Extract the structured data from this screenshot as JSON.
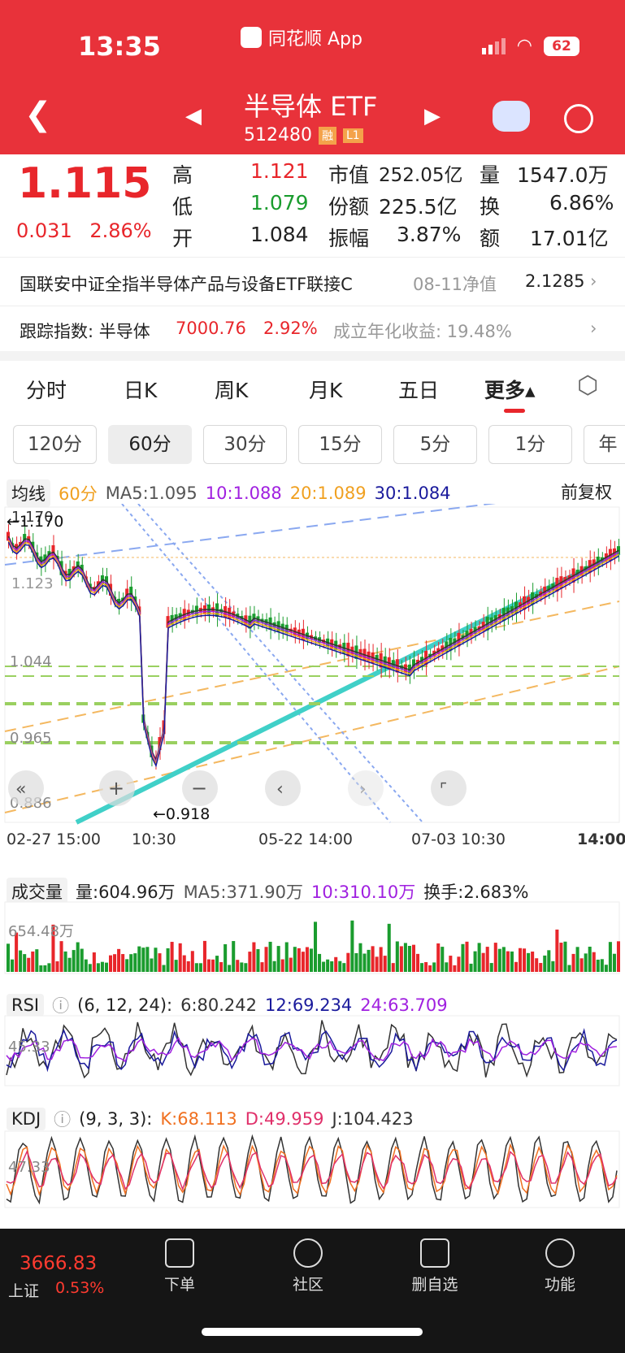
{
  "status_bar": {
    "time": "13:35",
    "app": "同花顺 App",
    "battery": "62"
  },
  "header": {
    "title": "半导体 ETF",
    "code": "512480",
    "tag_rong": "融",
    "tag_l1": "L1"
  },
  "quote": {
    "price": "1.115",
    "change": "0.031",
    "change_pct": "2.86%",
    "high_label": "高",
    "high": "1.121",
    "low_label": "低",
    "low": "1.079",
    "open_label": "开",
    "open": "1.084",
    "mktcap_label": "市值",
    "mktcap": "252.05亿",
    "shares_label": "份额",
    "shares": "225.5亿",
    "amp_label": "振幅",
    "amp": "3.87%",
    "vol_label": "量",
    "vol": "1547.0万",
    "turn_label": "换",
    "turn": "6.86%",
    "amt_label": "额",
    "amt": "17.01亿"
  },
  "fund_row": {
    "name": "国联安中证全指半导体产品与设备ETF联接C",
    "date_label": "08-11净值",
    "nav": "2.1285"
  },
  "index_row": {
    "label": "跟踪指数: 半导体",
    "value": "7000.76",
    "pct": "2.92%",
    "annual": "成立年化收益: 19.48%"
  },
  "tabs": [
    "分时",
    "日K",
    "周K",
    "月K",
    "五日",
    "更多▴"
  ],
  "subtabs": [
    "120分",
    "60分",
    "30分",
    "15分",
    "5分",
    "1分",
    "年"
  ],
  "ma_legend": {
    "dropdown": "均线",
    "period": "60分",
    "ma5": "MA5:1.095",
    "ma10": "10:1.088",
    "ma20": "20:1.089",
    "ma30": "30:1.084",
    "adjust": "前复权"
  },
  "kline": {
    "y_labels": [
      "1.170",
      "1.123",
      "1.044",
      "0.965",
      "0.886"
    ],
    "high_mark": "←1.170",
    "low_mark": "←0.918",
    "x_labels": [
      "02-27 15:00",
      "10:30",
      "05-22 14:00",
      "07-03 10:30",
      "14:00"
    ]
  },
  "volume_legend": {
    "dropdown": "成交量",
    "vol": "量:604.96万",
    "ma5": "MA5:371.90万",
    "ma10": "10:310.10万",
    "turnover": "换手:2.683%",
    "axis": "654.48万"
  },
  "rsi_legend": {
    "dropdown": "RSI",
    "params": "(6, 12, 24):",
    "r6": "6:80.242",
    "r12": "12:69.234",
    "r24": "24:63.709",
    "axis": "45.33"
  },
  "kdj_legend": {
    "dropdown": "KDJ",
    "params": "(9, 3, 3):",
    "k": "K:68.113",
    "d": "D:49.959",
    "j": "J:104.423",
    "axis": "47.33"
  },
  "bottom_nav": {
    "index_value": "3666.83",
    "index_name": "上证",
    "index_pct": "0.53%",
    "items": [
      "下单",
      "社区",
      "删自选",
      "功能"
    ]
  },
  "colors": {
    "up": "#e8262b",
    "down": "#1a9c2e",
    "header": "#e8323a"
  }
}
